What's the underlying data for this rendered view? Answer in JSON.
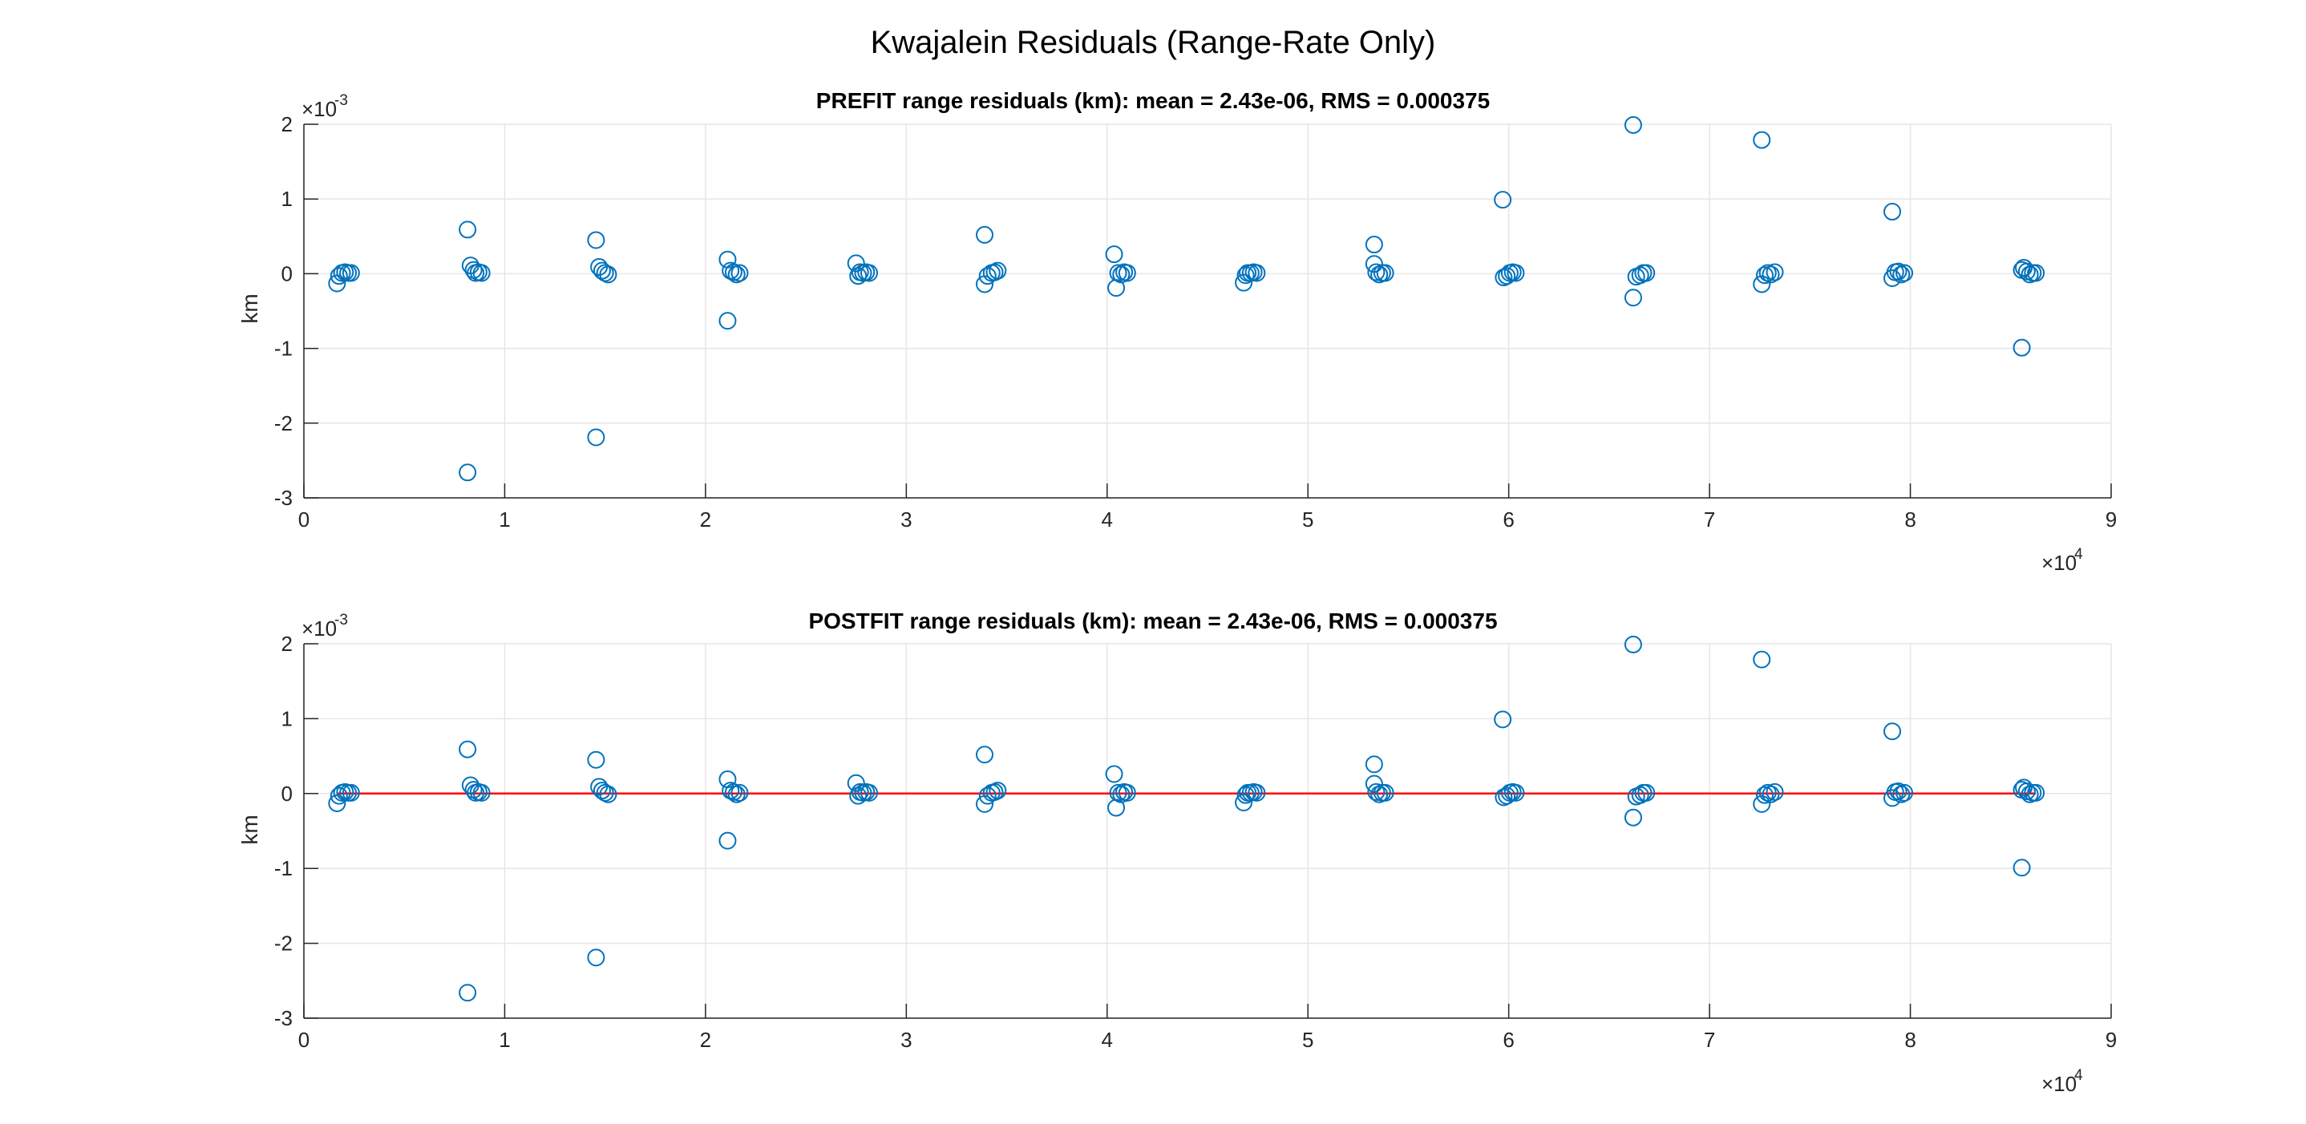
{
  "figure": {
    "title": "Kwajalein Residuals (Range-Rate Only)"
  },
  "colors": {
    "marker": "#0072BD",
    "zero_line": "#FF0000",
    "grid": "#E6E6E6",
    "axis": "#262626"
  },
  "chart_data": [
    {
      "type": "scatter",
      "title": "PREFIT range residuals (km): mean = 2.43e-06, RMS = 0.000375",
      "ylabel": "km",
      "xlabel": "",
      "xlim": [
        0,
        90000
      ],
      "ylim": [
        -0.003,
        0.002
      ],
      "x_ticks": [
        0,
        1,
        2,
        3,
        4,
        5,
        6,
        7,
        8,
        9
      ],
      "x_tick_labels": [
        "0",
        "1",
        "2",
        "3",
        "4",
        "5",
        "6",
        "7",
        "8",
        "9"
      ],
      "x_exponent_base": "×10",
      "x_exponent": "4",
      "y_ticks": [
        -3,
        -2,
        -1,
        0,
        1,
        2
      ],
      "y_tick_labels": [
        "-3",
        "-2",
        "-1",
        "0",
        "1",
        "2"
      ],
      "y_exponent_base": "×10",
      "y_exponent": "-3",
      "grid": true,
      "marker": "open-circle",
      "zero_line": false,
      "series": [
        {
          "points": [
            [
              1650,
              -0.00013
            ],
            [
              1750,
              -3e-05
            ],
            [
              1900,
              1e-05
            ],
            [
              2050,
              2e-05
            ],
            [
              2200,
              1e-05
            ],
            [
              2350,
              1e-05
            ],
            [
              8150,
              0.00059
            ],
            [
              8150,
              -0.00266
            ],
            [
              8300,
              0.00011
            ],
            [
              8450,
              5e-05
            ],
            [
              8550,
              1e-05
            ],
            [
              8700,
              2e-05
            ],
            [
              8850,
              1e-05
            ],
            [
              14550,
              0.00045
            ],
            [
              14550,
              -0.00219
            ],
            [
              14700,
              9e-05
            ],
            [
              14850,
              4e-05
            ],
            [
              15000,
              1e-05
            ],
            [
              15150,
              -1e-05
            ],
            [
              21100,
              0.00019
            ],
            [
              21100,
              -0.00063
            ],
            [
              21250,
              4e-05
            ],
            [
              21400,
              2e-05
            ],
            [
              21550,
              -1e-05
            ],
            [
              21700,
              1e-05
            ],
            [
              27500,
              0.00014
            ],
            [
              27600,
              -3e-05
            ],
            [
              27700,
              2e-05
            ],
            [
              27850,
              1e-05
            ],
            [
              28000,
              2e-05
            ],
            [
              28150,
              1e-05
            ],
            [
              33900,
              0.00052
            ],
            [
              33900,
              -0.00014
            ],
            [
              34050,
              -3e-05
            ],
            [
              34250,
              1e-05
            ],
            [
              34400,
              2e-05
            ],
            [
              34550,
              4e-05
            ],
            [
              40350,
              0.00026
            ],
            [
              40450,
              -0.00019
            ],
            [
              40550,
              1e-05
            ],
            [
              40700,
              -1e-05
            ],
            [
              40850,
              2e-05
            ],
            [
              41000,
              1e-05
            ],
            [
              46800,
              -0.00012
            ],
            [
              46900,
              -2e-05
            ],
            [
              47000,
              1e-05
            ],
            [
              47150,
              1e-05
            ],
            [
              47300,
              2e-05
            ],
            [
              47450,
              1e-05
            ],
            [
              53300,
              0.00039
            ],
            [
              53300,
              0.00013
            ],
            [
              53400,
              2e-05
            ],
            [
              53550,
              -1e-05
            ],
            [
              53700,
              1e-05
            ],
            [
              53850,
              1e-05
            ],
            [
              59700,
              0.00099
            ],
            [
              59750,
              -5e-05
            ],
            [
              59900,
              -3e-05
            ],
            [
              60050,
              1e-05
            ],
            [
              60200,
              2e-05
            ],
            [
              60350,
              1e-05
            ],
            [
              66200,
              0.00199
            ],
            [
              66200,
              -0.00032
            ],
            [
              66350,
              -4e-05
            ],
            [
              66550,
              -2e-05
            ],
            [
              66700,
              1e-05
            ],
            [
              66850,
              1e-05
            ],
            [
              72600,
              0.00179
            ],
            [
              72600,
              -0.00014
            ],
            [
              72750,
              -2e-05
            ],
            [
              72900,
              1e-05
            ],
            [
              73050,
              -1e-05
            ],
            [
              73250,
              2e-05
            ],
            [
              79100,
              0.00083
            ],
            [
              79100,
              -6e-05
            ],
            [
              79250,
              2e-05
            ],
            [
              79400,
              3e-05
            ],
            [
              79550,
              -1e-05
            ],
            [
              79700,
              1e-05
            ],
            [
              85550,
              -0.00099
            ],
            [
              85550,
              5e-05
            ],
            [
              85650,
              8e-05
            ],
            [
              85800,
              3e-05
            ],
            [
              85950,
              -1e-05
            ],
            [
              86100,
              1e-05
            ],
            [
              86250,
              1e-05
            ]
          ]
        }
      ]
    },
    {
      "type": "scatter",
      "title": "POSTFIT range residuals (km): mean = 2.43e-06, RMS = 0.000375",
      "ylabel": "km",
      "xlabel": "",
      "xlim": [
        0,
        90000
      ],
      "ylim": [
        -0.003,
        0.002
      ],
      "x_ticks": [
        0,
        1,
        2,
        3,
        4,
        5,
        6,
        7,
        8,
        9
      ],
      "x_tick_labels": [
        "0",
        "1",
        "2",
        "3",
        "4",
        "5",
        "6",
        "7",
        "8",
        "9"
      ],
      "x_exponent_base": "×10",
      "x_exponent": "4",
      "y_ticks": [
        -3,
        -2,
        -1,
        0,
        1,
        2
      ],
      "y_tick_labels": [
        "-3",
        "-2",
        "-1",
        "0",
        "1",
        "2"
      ],
      "y_exponent_base": "×10",
      "y_exponent": "-3",
      "grid": true,
      "marker": "open-circle",
      "zero_line": true,
      "zero_line_x": [
        1650,
        86250
      ],
      "series": [
        {
          "points": [
            [
              1650,
              -0.00013
            ],
            [
              1750,
              -3e-05
            ],
            [
              1900,
              1e-05
            ],
            [
              2050,
              2e-05
            ],
            [
              2200,
              1e-05
            ],
            [
              2350,
              1e-05
            ],
            [
              8150,
              0.00059
            ],
            [
              8150,
              -0.00266
            ],
            [
              8300,
              0.00011
            ],
            [
              8450,
              5e-05
            ],
            [
              8550,
              1e-05
            ],
            [
              8700,
              2e-05
            ],
            [
              8850,
              1e-05
            ],
            [
              14550,
              0.00045
            ],
            [
              14550,
              -0.00219
            ],
            [
              14700,
              9e-05
            ],
            [
              14850,
              4e-05
            ],
            [
              15000,
              1e-05
            ],
            [
              15150,
              -1e-05
            ],
            [
              21100,
              0.00019
            ],
            [
              21100,
              -0.00063
            ],
            [
              21250,
              4e-05
            ],
            [
              21400,
              2e-05
            ],
            [
              21550,
              -1e-05
            ],
            [
              21700,
              1e-05
            ],
            [
              27500,
              0.00014
            ],
            [
              27600,
              -3e-05
            ],
            [
              27700,
              2e-05
            ],
            [
              27850,
              1e-05
            ],
            [
              28000,
              2e-05
            ],
            [
              28150,
              1e-05
            ],
            [
              33900,
              0.00052
            ],
            [
              33900,
              -0.00014
            ],
            [
              34050,
              -3e-05
            ],
            [
              34250,
              1e-05
            ],
            [
              34400,
              2e-05
            ],
            [
              34550,
              4e-05
            ],
            [
              40350,
              0.00026
            ],
            [
              40450,
              -0.00019
            ],
            [
              40550,
              1e-05
            ],
            [
              40700,
              -1e-05
            ],
            [
              40850,
              2e-05
            ],
            [
              41000,
              1e-05
            ],
            [
              46800,
              -0.00012
            ],
            [
              46900,
              -2e-05
            ],
            [
              47000,
              1e-05
            ],
            [
              47150,
              1e-05
            ],
            [
              47300,
              2e-05
            ],
            [
              47450,
              1e-05
            ],
            [
              53300,
              0.00039
            ],
            [
              53300,
              0.00013
            ],
            [
              53400,
              2e-05
            ],
            [
              53550,
              -1e-05
            ],
            [
              53700,
              1e-05
            ],
            [
              53850,
              1e-05
            ],
            [
              59700,
              0.00099
            ],
            [
              59750,
              -5e-05
            ],
            [
              59900,
              -3e-05
            ],
            [
              60050,
              1e-05
            ],
            [
              60200,
              2e-05
            ],
            [
              60350,
              1e-05
            ],
            [
              66200,
              0.00199
            ],
            [
              66200,
              -0.00032
            ],
            [
              66350,
              -4e-05
            ],
            [
              66550,
              -2e-05
            ],
            [
              66700,
              1e-05
            ],
            [
              66850,
              1e-05
            ],
            [
              72600,
              0.00179
            ],
            [
              72600,
              -0.00014
            ],
            [
              72750,
              -2e-05
            ],
            [
              72900,
              1e-05
            ],
            [
              73050,
              -1e-05
            ],
            [
              73250,
              2e-05
            ],
            [
              79100,
              0.00083
            ],
            [
              79100,
              -6e-05
            ],
            [
              79250,
              2e-05
            ],
            [
              79400,
              3e-05
            ],
            [
              79550,
              -1e-05
            ],
            [
              79700,
              1e-05
            ],
            [
              85550,
              -0.00099
            ],
            [
              85550,
              5e-05
            ],
            [
              85650,
              8e-05
            ],
            [
              85800,
              3e-05
            ],
            [
              85950,
              -1e-05
            ],
            [
              86100,
              1e-05
            ],
            [
              86250,
              1e-05
            ]
          ]
        }
      ]
    }
  ]
}
